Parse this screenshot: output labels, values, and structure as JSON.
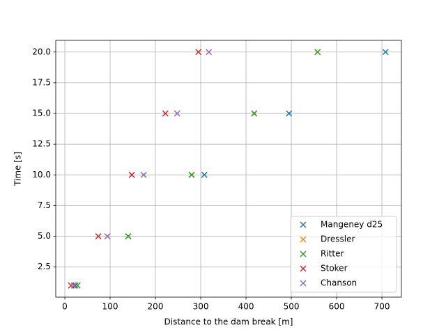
{
  "chart_data": {
    "type": "scatter",
    "x_label": "Distance to the dam break [m]",
    "y_label": "Time [s]",
    "xlim": [
      -20,
      743
    ],
    "ylim": [
      0.05,
      20.95
    ],
    "xticks": [
      0,
      100,
      200,
      300,
      400,
      500,
      600,
      700
    ],
    "yticks": [
      2.5,
      {
        "value": 5,
        "label": "5.0"
      },
      7.5,
      {
        "value": 10,
        "label": "10.0"
      },
      12.5,
      {
        "value": 15,
        "label": "15.0"
      },
      17.5,
      {
        "value": 20,
        "label": "20.0"
      }
    ],
    "grid": true,
    "legend": "lower right",
    "series": [
      {
        "name": "Mangeney d25",
        "color": "#1f77b4",
        "x": [
          23,
          140,
          308,
          495,
          708
        ],
        "values": [
          1,
          5,
          10,
          15,
          20
        ]
      },
      {
        "name": "Dressler",
        "color": "#ff7f0e",
        "x": [
          28,
          140,
          280,
          418,
          558
        ],
        "values": [
          1,
          5,
          10,
          15,
          20
        ]
      },
      {
        "name": "Ritter",
        "color": "#2ca02c",
        "x": [
          28,
          140,
          280,
          418,
          558
        ],
        "values": [
          1,
          5,
          10,
          15,
          20
        ]
      },
      {
        "name": "Stoker",
        "color": "#d62728",
        "x": [
          14,
          74,
          148,
          222,
          295
        ],
        "values": [
          1,
          5,
          10,
          15,
          20
        ]
      },
      {
        "name": "Chanson",
        "color": "#9467bd",
        "x": [
          20,
          94,
          174,
          248,
          318
        ],
        "values": [
          1,
          5,
          10,
          15,
          20
        ]
      }
    ]
  }
}
